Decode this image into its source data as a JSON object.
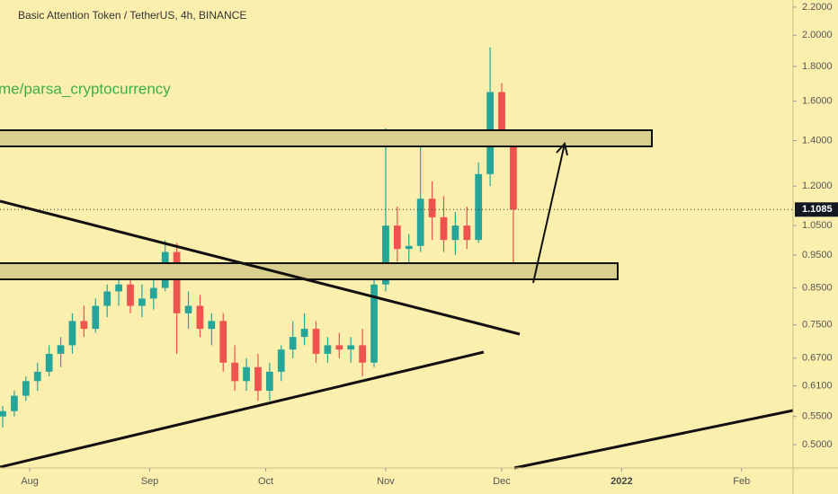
{
  "chart_data": {
    "type": "candlestick",
    "title": "Basic Attention Token / TetherUS, 4h, BINANCE",
    "watermark": "me/parsa_cryptocurrency",
    "log_scale": true,
    "up_color": "#26a69a",
    "down_color": "#ef5350",
    "x": [
      -7,
      -4,
      -1,
      2,
      5,
      8,
      11,
      14,
      17,
      20,
      23,
      26,
      29,
      32,
      35,
      38,
      41,
      44,
      47,
      50,
      53,
      56,
      59,
      62,
      65,
      68,
      71,
      74,
      77,
      80,
      83,
      86,
      89,
      92,
      95,
      98,
      101,
      104,
      107,
      110,
      113,
      116,
      119,
      122,
      125
    ],
    "open": [
      0.55,
      0.56,
      0.59,
      0.62,
      0.64,
      0.68,
      0.7,
      0.76,
      0.74,
      0.8,
      0.84,
      0.86,
      0.8,
      0.82,
      0.85,
      0.96,
      0.78,
      0.8,
      0.74,
      0.76,
      0.66,
      0.62,
      0.65,
      0.6,
      0.64,
      0.69,
      0.72,
      0.74,
      0.68,
      0.7,
      0.69,
      0.7,
      0.66,
      0.86,
      1.05,
      0.97,
      0.98,
      1.15,
      1.08,
      1.0,
      1.05,
      1.0,
      1.25,
      1.65,
      1.42
    ],
    "high": [
      0.57,
      0.6,
      0.63,
      0.66,
      0.7,
      0.72,
      0.78,
      0.8,
      0.82,
      0.86,
      0.91,
      0.9,
      0.86,
      0.88,
      1.0,
      0.99,
      0.84,
      0.83,
      0.78,
      0.78,
      0.7,
      0.67,
      0.68,
      0.66,
      0.7,
      0.76,
      0.78,
      0.76,
      0.72,
      0.73,
      0.72,
      0.74,
      0.9,
      1.46,
      1.12,
      1.02,
      1.38,
      1.22,
      1.16,
      1.1,
      1.12,
      1.3,
      1.92,
      1.7,
      1.45
    ],
    "low": [
      0.53,
      0.55,
      0.58,
      0.6,
      0.63,
      0.65,
      0.68,
      0.72,
      0.73,
      0.77,
      0.8,
      0.78,
      0.77,
      0.79,
      0.84,
      0.68,
      0.74,
      0.72,
      0.7,
      0.64,
      0.6,
      0.6,
      0.58,
      0.58,
      0.62,
      0.67,
      0.7,
      0.66,
      0.66,
      0.67,
      0.66,
      0.63,
      0.65,
      0.84,
      0.93,
      0.92,
      0.96,
      1.0,
      0.96,
      0.95,
      0.97,
      0.99,
      1.2,
      1.38,
      0.88
    ],
    "close": [
      0.56,
      0.59,
      0.62,
      0.64,
      0.68,
      0.7,
      0.76,
      0.74,
      0.8,
      0.84,
      0.86,
      0.8,
      0.82,
      0.85,
      0.96,
      0.78,
      0.8,
      0.74,
      0.76,
      0.66,
      0.62,
      0.65,
      0.6,
      0.64,
      0.69,
      0.72,
      0.74,
      0.68,
      0.7,
      0.69,
      0.7,
      0.66,
      0.86,
      1.05,
      0.97,
      0.98,
      1.15,
      1.08,
      1.0,
      1.05,
      1.0,
      1.25,
      1.65,
      1.42,
      1.1085
    ],
    "last_price": 1.1085,
    "xlim": [
      -7.7,
      197.3
    ],
    "xticks": [
      {
        "value": 0,
        "label": "Aug"
      },
      {
        "value": 31,
        "label": "Sep"
      },
      {
        "value": 61,
        "label": "Oct"
      },
      {
        "value": 92,
        "label": "Nov"
      },
      {
        "value": 122,
        "label": "Dec"
      },
      {
        "value": 153,
        "label": "2022"
      },
      {
        "value": 184,
        "label": "Feb"
      }
    ],
    "ylim": [
      0.462,
      2.254
    ],
    "yticks": [
      {
        "value": 0.5,
        "label": "0.5000"
      },
      {
        "value": 0.55,
        "label": "0.5500"
      },
      {
        "value": 0.61,
        "label": "0.6100"
      },
      {
        "value": 0.67,
        "label": "0.6700"
      },
      {
        "value": 0.75,
        "label": "0.7500"
      },
      {
        "value": 0.85,
        "label": "0.8500"
      },
      {
        "value": 0.95,
        "label": "0.9500"
      },
      {
        "value": 1.05,
        "label": "1.0500"
      },
      {
        "value": 1.2,
        "label": "1.2000"
      },
      {
        "value": 1.4,
        "label": "1.4000"
      },
      {
        "value": 1.6,
        "label": "1.6000"
      },
      {
        "value": 1.8,
        "label": "1.8000"
      },
      {
        "value": 2.0,
        "label": "2.0000"
      },
      {
        "value": 2.2,
        "label": "2.2000"
      }
    ]
  }
}
